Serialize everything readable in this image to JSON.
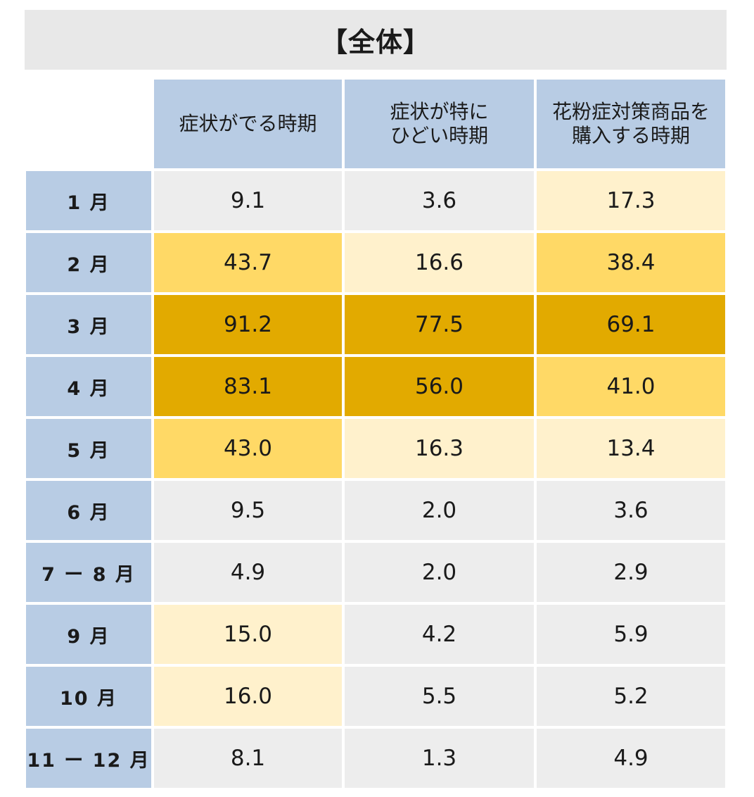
{
  "title": "【全体】",
  "chart_data": {
    "type": "table",
    "columns": [
      "症状がでる時期",
      "症状が特に\nひどい時期",
      "花粉症対策商品を\n購入する時期"
    ],
    "rows": [
      {
        "label": "1 月",
        "values": [
          "9.1",
          "3.6",
          "17.3"
        ]
      },
      {
        "label": "2 月",
        "values": [
          "43.7",
          "16.6",
          "38.4"
        ]
      },
      {
        "label": "3 月",
        "values": [
          "91.2",
          "77.5",
          "69.1"
        ]
      },
      {
        "label": "4 月",
        "values": [
          "83.1",
          "56.0",
          "41.0"
        ]
      },
      {
        "label": "5 月",
        "values": [
          "43.0",
          "16.3",
          "13.4"
        ]
      },
      {
        "label": "6 月",
        "values": [
          "9.5",
          "2.0",
          "3.6"
        ]
      },
      {
        "label": "7 ー 8 月",
        "values": [
          "4.9",
          "2.0",
          "2.9"
        ]
      },
      {
        "label": "9 月",
        "values": [
          "15.0",
          "4.2",
          "5.9"
        ]
      },
      {
        "label": "10 月",
        "values": [
          "16.0",
          "5.5",
          "5.2"
        ]
      },
      {
        "label": "11 ー 12 月",
        "values": [
          "8.1",
          "1.3",
          "4.9"
        ]
      }
    ],
    "heat_colors": [
      "#ededed",
      "#fff1cc",
      "#ffd966",
      "#e2aa00"
    ],
    "header_color": "#b8cce4"
  }
}
